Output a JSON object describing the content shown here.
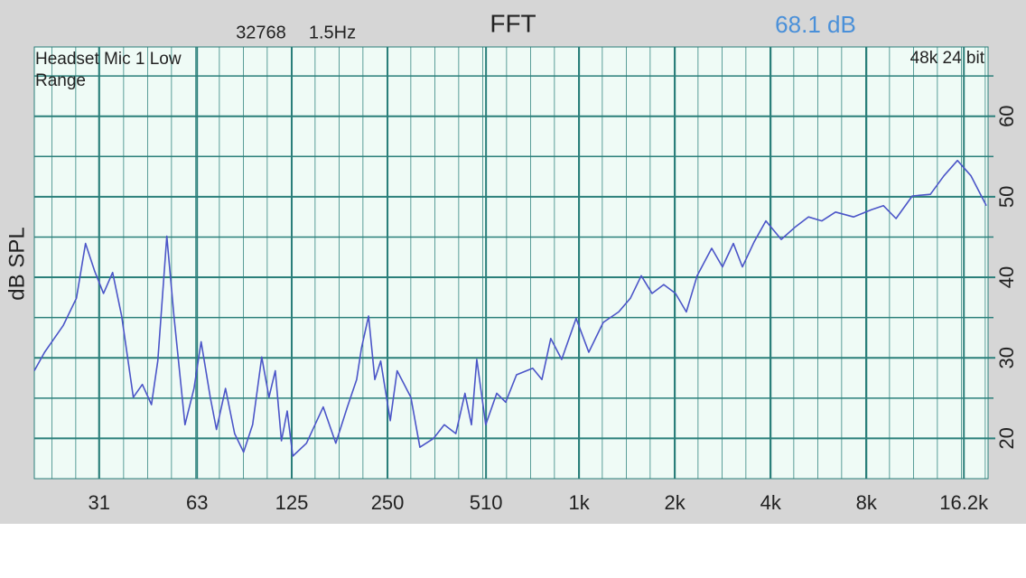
{
  "chart_data": {
    "type": "line",
    "title": "FFT",
    "fft_size": 32768,
    "resolution": "1.5Hz",
    "level": "68.1 dB",
    "input": "Headset Mic 1 Low Range",
    "format": "48k 24 bit",
    "y_label": "dB SPL",
    "log_x": true,
    "grid": true,
    "xlim": [
      19.4,
      19300
    ],
    "ylim": [
      15,
      68.6
    ],
    "xticks": [
      31,
      63,
      125,
      250,
      510,
      {
        "value": 1000,
        "label": "1k"
      },
      {
        "value": 2000,
        "label": "2k"
      },
      {
        "value": 4000,
        "label": "4k"
      },
      {
        "value": 8000,
        "label": "8k"
      },
      {
        "value": 16200,
        "label": "16.2k"
      }
    ],
    "yticks": [
      20,
      30,
      40,
      50,
      60
    ],
    "minor_yticks": [
      25,
      35,
      45,
      55,
      65
    ],
    "series": [
      {
        "color": "#4b55c8",
        "x": [
          19.4,
          20.9,
          23.9,
          26.3,
          28.1,
          30.0,
          32.0,
          34.2,
          36.5,
          39.7,
          42.4,
          45.3,
          47.4,
          50.6,
          53.3,
          57.7,
          61.6,
          64.9,
          69.3,
          72.5,
          77.4,
          82.7,
          88.2,
          94.2,
          100.6,
          106,
          111,
          116,
          121,
          126,
          139,
          157,
          172,
          187,
          200,
          207,
          218,
          228,
          238,
          255,
          268,
          296,
          316,
          349,
          377,
          410,
          438,
          459,
          477,
          509,
          551,
          588,
          636,
          715,
          764,
          815,
          882,
          979,
          1073,
          1191,
          1332,
          1450,
          1568,
          1696,
          1846,
          2010,
          2174,
          2351,
          2611,
          2823,
          3055,
          3261,
          3550,
          3866,
          4321,
          4765,
          5258,
          5797,
          6398,
          7288,
          8308,
          9046,
          9914,
          11154,
          12707,
          14021,
          15460,
          17059,
          19062
        ],
        "values": [
          28.4,
          30.7,
          34.0,
          37.4,
          44.2,
          40.8,
          38.0,
          40.6,
          35.2,
          25.1,
          26.7,
          24.2,
          29.6,
          45.1,
          35.2,
          21.7,
          26.2,
          32.0,
          25.1,
          21.1,
          26.2,
          20.6,
          18.3,
          21.7,
          30.1,
          25.1,
          28.4,
          19.7,
          23.4,
          17.8,
          19.4,
          23.9,
          19.4,
          23.9,
          27.3,
          31.2,
          35.2,
          27.3,
          29.6,
          22.2,
          28.4,
          25.1,
          18.9,
          20.0,
          21.7,
          20.6,
          25.6,
          21.7,
          29.8,
          21.7,
          25.6,
          24.5,
          27.9,
          28.7,
          27.3,
          32.4,
          29.8,
          34.9,
          30.7,
          34.4,
          35.7,
          37.4,
          40.2,
          38.0,
          39.1,
          38.0,
          35.7,
          40.2,
          43.6,
          41.3,
          44.2,
          41.3,
          44.4,
          47.0,
          44.7,
          46.2,
          47.5,
          47.0,
          48.1,
          47.5,
          48.4,
          48.9,
          47.3,
          50.1,
          50.3,
          52.6,
          54.5,
          52.6,
          48.9
        ]
      }
    ]
  }
}
